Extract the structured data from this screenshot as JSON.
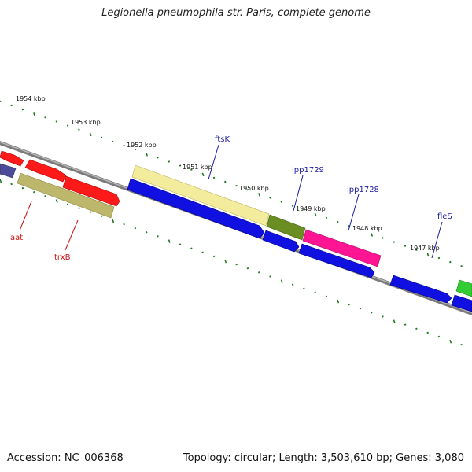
{
  "title": "Legionella pneumophila str. Paris, complete genome",
  "footer": {
    "accession": "Accession: NC_006368",
    "summary": "Topology: circular; Length: 3,503,610 bp; Genes: 3,080"
  },
  "ruler": {
    "labels": [
      "1954 kbp",
      "1953 kbp",
      "1952 kbp",
      "1951 kbp",
      "1950 kbp",
      "1949 kbp",
      "1948 kbp",
      "1947 kbp"
    ]
  },
  "gene_labels": [
    {
      "name": "ftsK",
      "color": "#1a1aa6"
    },
    {
      "name": "lpp1729",
      "color": "#1a1aa6"
    },
    {
      "name": "lpp1728",
      "color": "#1a1aa6"
    },
    {
      "name": "fleS",
      "color": "#1a1aa6"
    },
    {
      "name": "aat",
      "color": "#cc1111"
    },
    {
      "name": "trxB",
      "color": "#cc1111"
    }
  ],
  "colors": {
    "backbone": "#8a8a8a",
    "ticks": "#1f7a1f",
    "red": "#ff1a1a",
    "khaki": "#bdb76b",
    "pale_yellow": "#f3ec9c",
    "blue": "#1010e0",
    "olive": "#6b8e23",
    "pink": "#ff1493",
    "green": "#33cc33",
    "dark_slate": "#4b4b9a"
  }
}
